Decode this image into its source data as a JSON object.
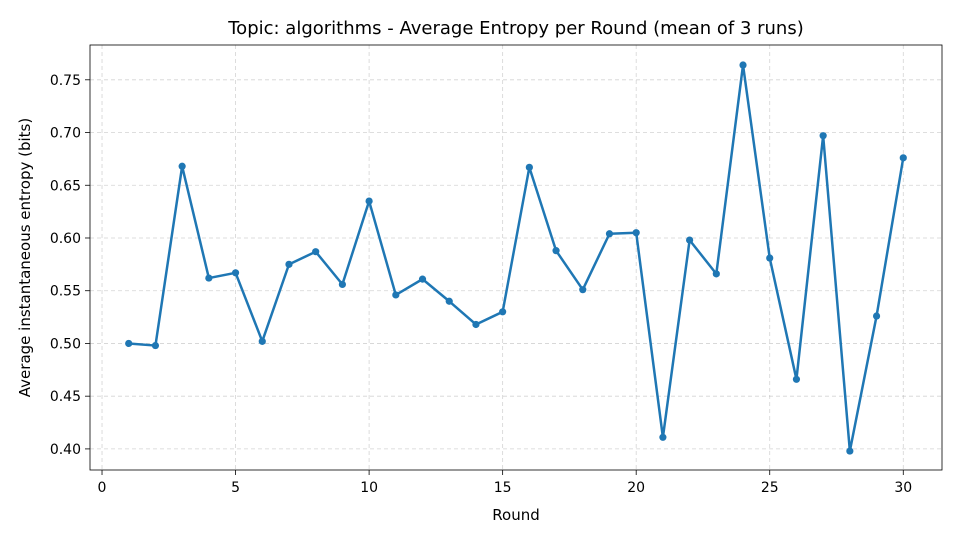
{
  "chart_data": {
    "type": "line",
    "title": "Topic: algorithms - Average Entropy per Round (mean of 3 runs)",
    "xlabel": "Round",
    "ylabel": "Average instantaneous entropy (bits)",
    "xlim": [
      -0.45,
      31.45
    ],
    "ylim": [
      0.38,
      0.783
    ],
    "xticks": [
      0,
      5,
      10,
      15,
      20,
      25,
      30
    ],
    "xtick_labels": [
      "0",
      "5",
      "10",
      "15",
      "20",
      "25",
      "30"
    ],
    "yticks": [
      0.4,
      0.45,
      0.5,
      0.55,
      0.6,
      0.65,
      0.7,
      0.75
    ],
    "ytick_labels": [
      "0.40",
      "0.45",
      "0.50",
      "0.55",
      "0.60",
      "0.65",
      "0.70",
      "0.75"
    ],
    "grid": true,
    "color": "#1f77b4",
    "x": [
      1,
      2,
      3,
      4,
      5,
      6,
      7,
      8,
      9,
      10,
      11,
      12,
      13,
      14,
      15,
      16,
      17,
      18,
      19,
      20,
      21,
      22,
      23,
      24,
      25,
      26,
      27,
      28,
      29,
      30
    ],
    "series": [
      {
        "values": [
          0.5,
          0.498,
          0.668,
          0.562,
          0.567,
          0.502,
          0.575,
          0.587,
          0.556,
          0.635,
          0.546,
          0.561,
          0.54,
          0.518,
          0.53,
          0.667,
          0.588,
          0.551,
          0.604,
          0.605,
          0.411,
          0.598,
          0.566,
          0.764,
          0.581,
          0.466,
          0.697,
          0.398,
          0.526,
          0.676
        ]
      }
    ]
  }
}
